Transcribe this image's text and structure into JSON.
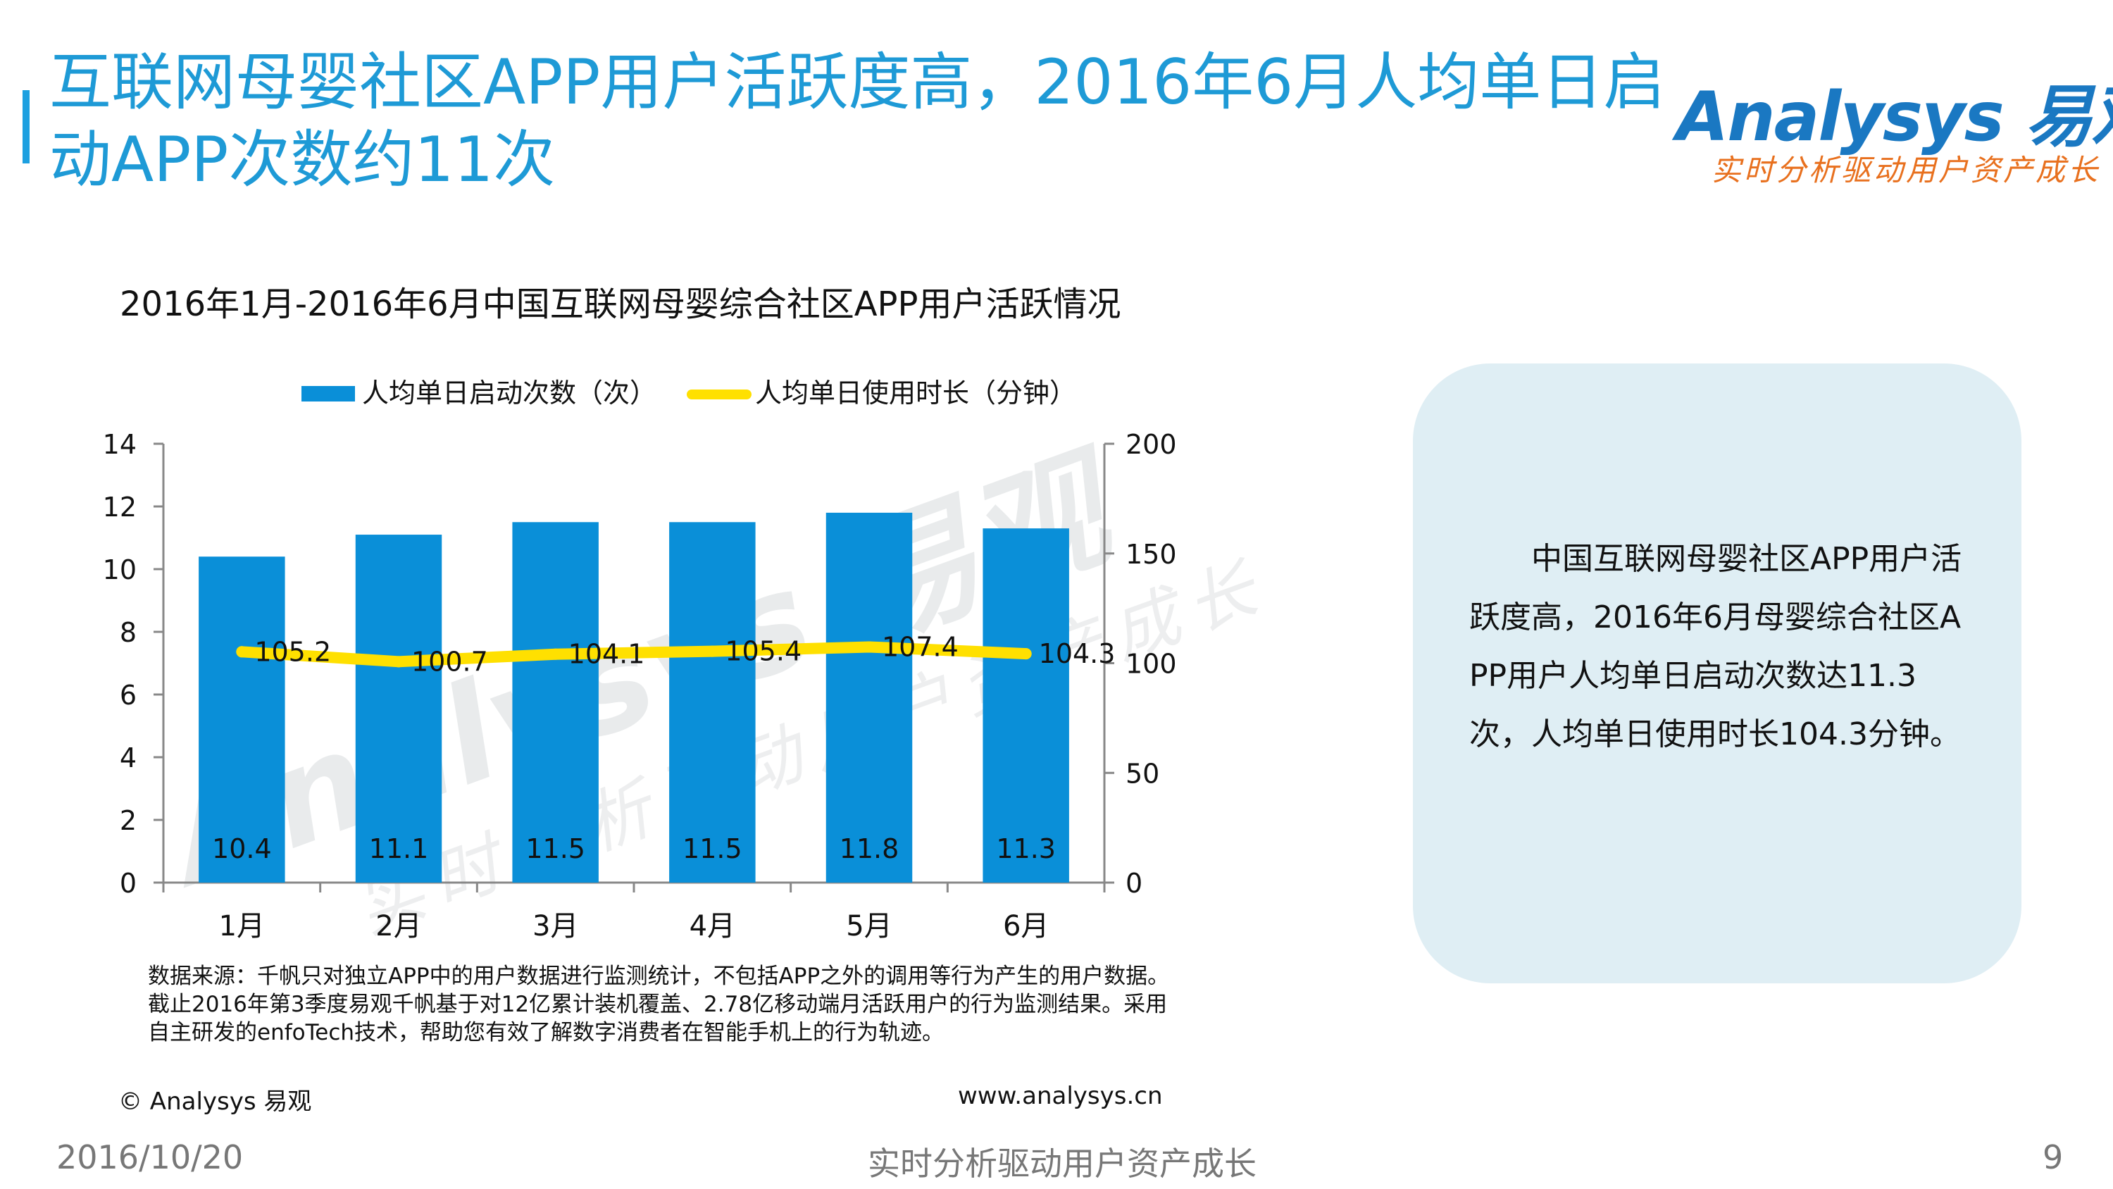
{
  "header": {
    "title": "互联网母婴社区APP用户活跃度高，2016年6月人均单日启动APP次数约11次",
    "logo_text": "Analysys 易观",
    "logo_slogan": "实时分析驱动用户资产成长"
  },
  "chart_data": {
    "type": "bar",
    "title": "2016年1月-2016年6月中国互联网母婴综合社区APP用户活跃情况",
    "categories": [
      "1月",
      "2月",
      "3月",
      "4月",
      "5月",
      "6月"
    ],
    "series": [
      {
        "name": "人均单日启动次数（次）",
        "type": "bar",
        "axis": "left",
        "color": "#0a8fd8",
        "values": [
          10.4,
          11.1,
          11.5,
          11.5,
          11.8,
          11.3
        ]
      },
      {
        "name": "人均单日使用时长（分钟）",
        "type": "line",
        "axis": "right",
        "color": "#ffe000",
        "values": [
          105.2,
          100.7,
          104.1,
          105.4,
          107.4,
          104.3
        ]
      }
    ],
    "y_left": {
      "range": [
        0,
        14
      ],
      "ticks": [
        "0",
        "2",
        "4",
        "6",
        "8",
        "10",
        "12",
        "14"
      ]
    },
    "y_right": {
      "range": [
        0,
        200
      ],
      "ticks": [
        "0",
        "50",
        "100",
        "150",
        "200"
      ]
    },
    "legend_position": "top",
    "grid": false
  },
  "watermark": {
    "text": "Analysys 易观",
    "slogan": "实时分析驱动用户资产成长"
  },
  "note": {
    "text": "中国互联网母婴社区APP用户活跃度高，2016年6月母婴综合社区APP用户人均单日启动次数达11.3次，人均单日使用时长104.3分钟。"
  },
  "source": {
    "text": "数据来源：千帆只对独立APP中的用户数据进行监测统计，不包括APP之外的调用等行为产生的用户数据。截止2016年第3季度易观千帆基于对12亿累计装机覆盖、2.78亿移动端月活跃用户的行为监测结果。采用自主研发的enfoTech技术，帮助您有效了解数字消费者在智能手机上的行为轨迹。",
    "copyright": "© Analysys 易观",
    "website": "www.analysys.cn"
  },
  "footer": {
    "date": "2016/10/20",
    "slogan": "实时分析驱动用户资产成长",
    "page": "9"
  }
}
